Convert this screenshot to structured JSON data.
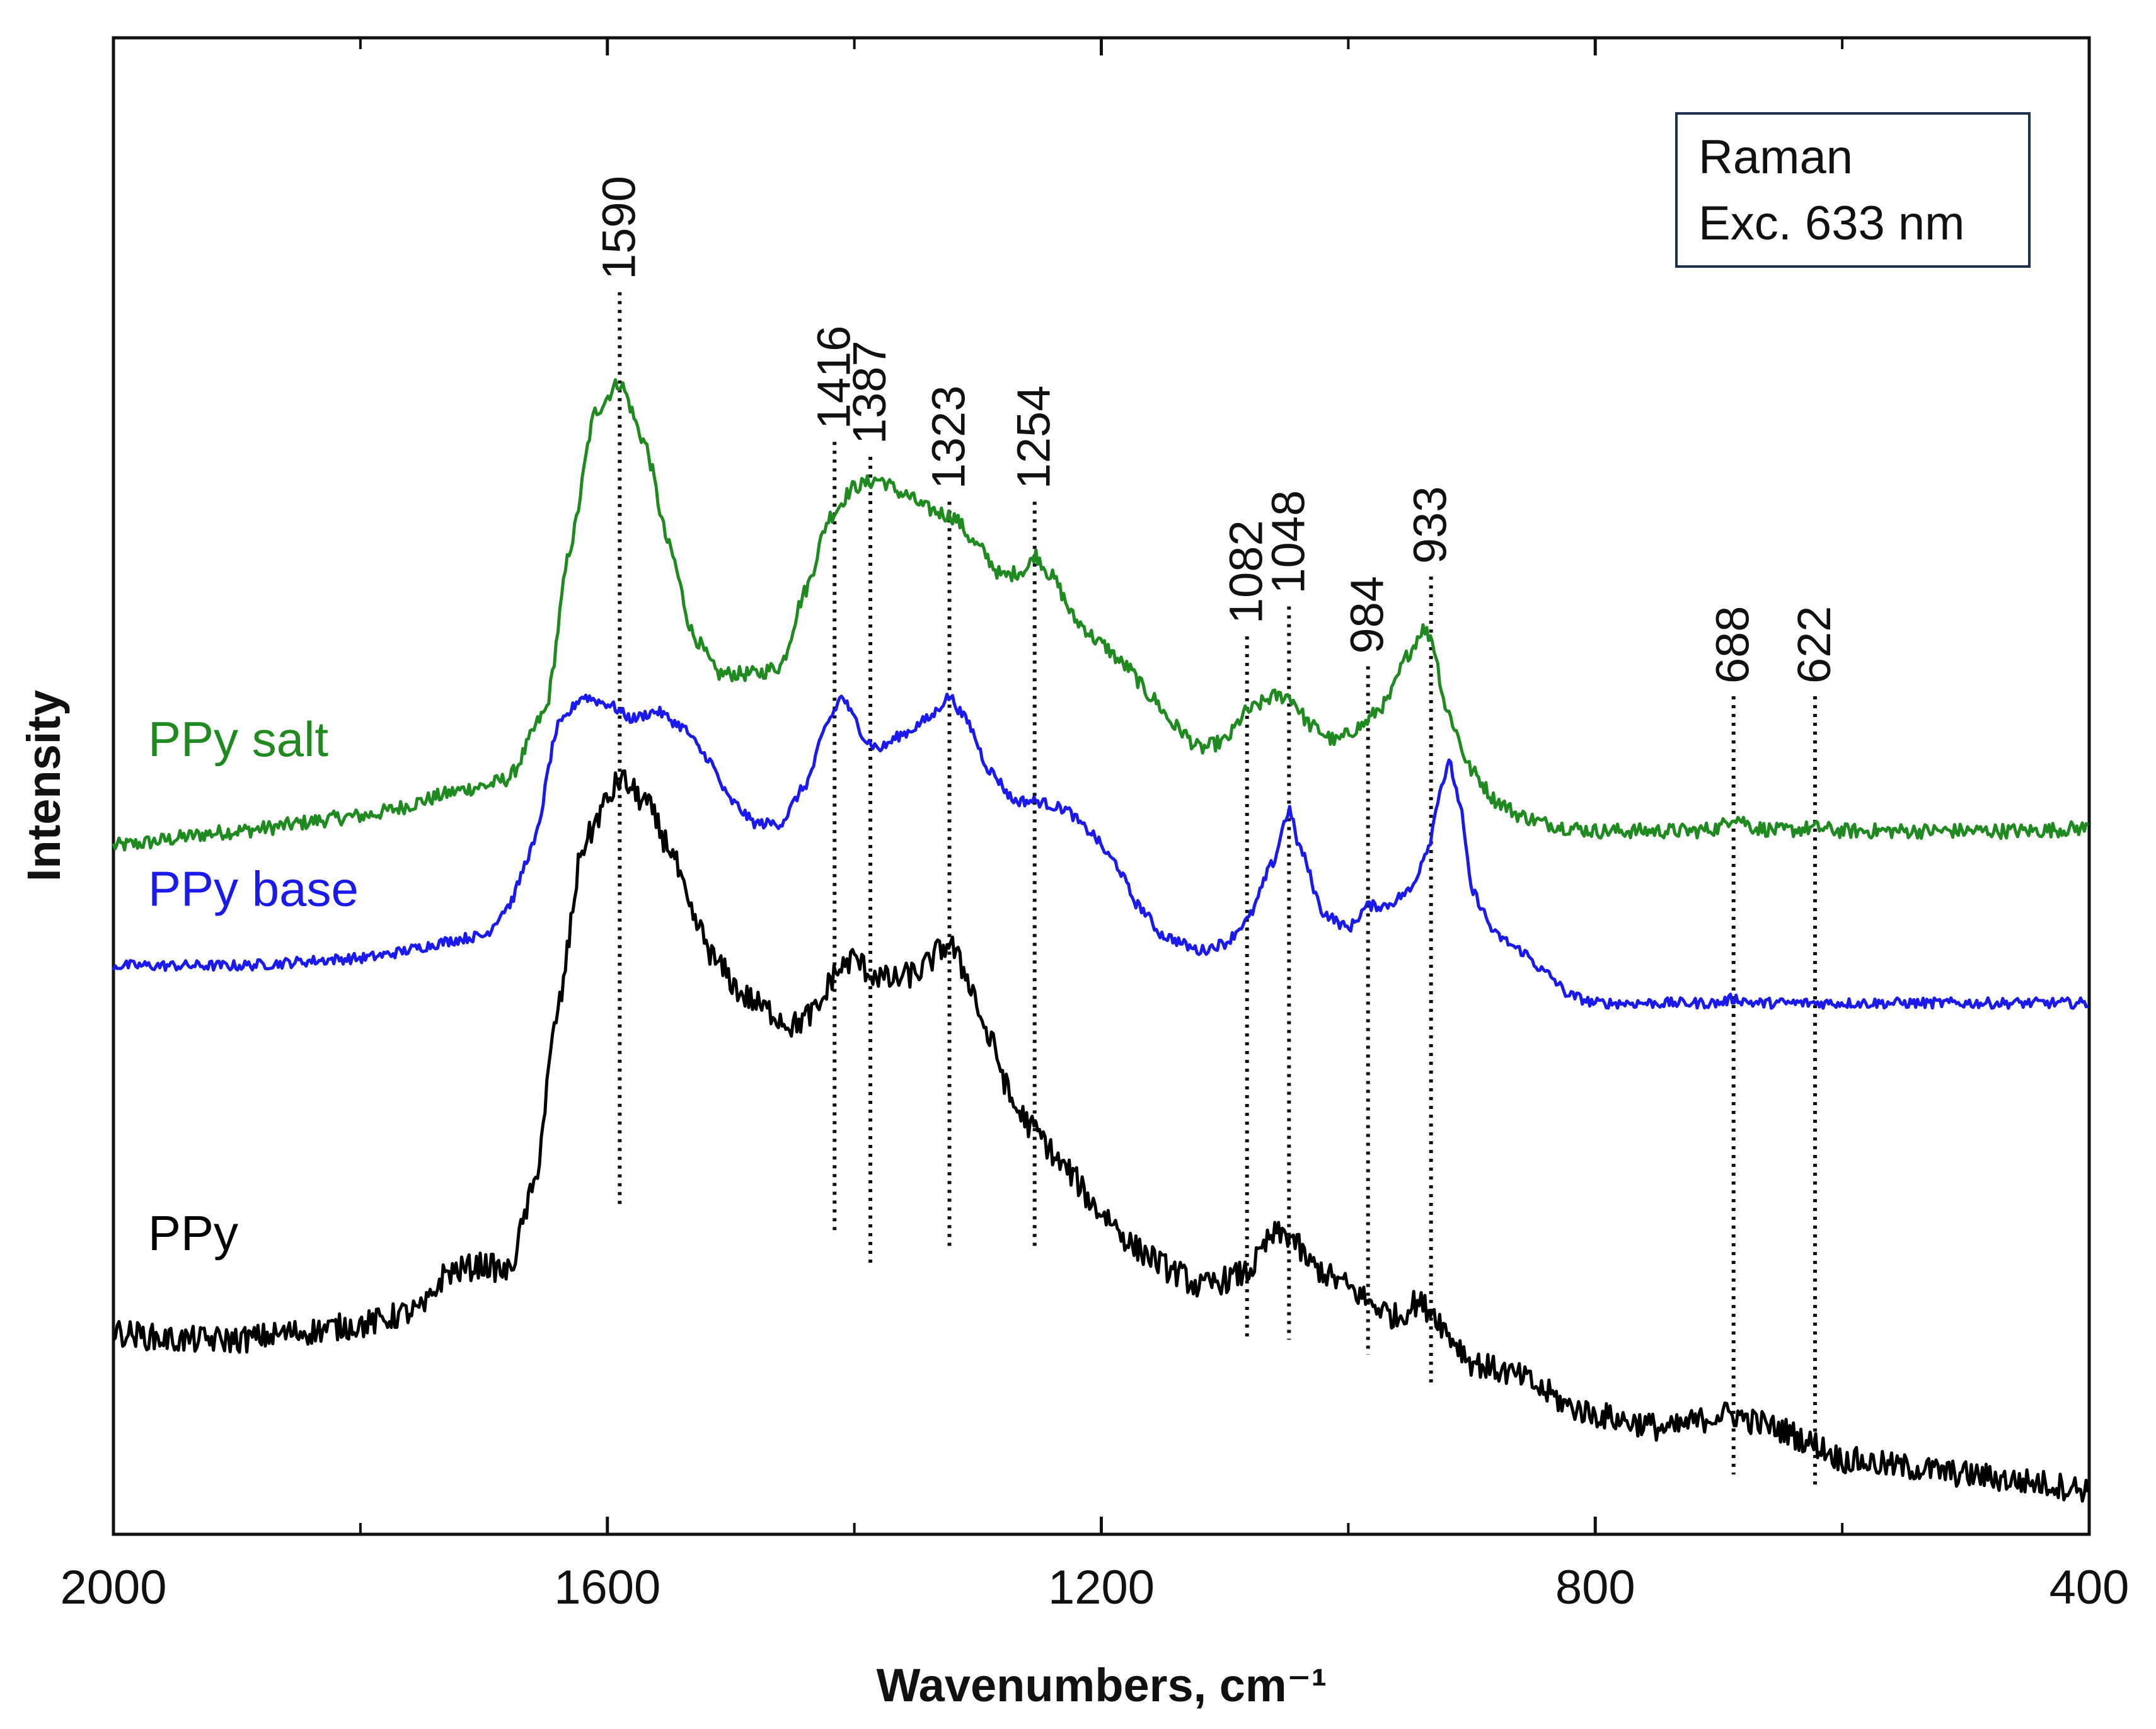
{
  "chart_data": {
    "type": "line",
    "title": "",
    "xlabel": "Wavenumbers, cm⁻¹",
    "ylabel": "Intensity",
    "xlim": [
      2000,
      400
    ],
    "x_reversed": true,
    "xticks": [
      2000,
      1600,
      1200,
      800,
      400
    ],
    "xtick_labels": [
      "2000",
      "1600",
      "1200",
      "800",
      "400"
    ],
    "grid": false,
    "annotation_box": {
      "lines": [
        "Raman",
        "Exc. 633 nm"
      ],
      "position": "top-right"
    },
    "peak_markers": [
      {
        "x": 1590,
        "label": "1590",
        "y_top": 8.3,
        "y_bottom": 2.2
      },
      {
        "x": 1416,
        "label": "1416",
        "y_top": 7.3,
        "y_bottom": 2.0
      },
      {
        "x": 1387,
        "label": "1387",
        "y_top": 7.2,
        "y_bottom": 1.8
      },
      {
        "x": 1323,
        "label": "1323",
        "y_top": 6.9,
        "y_bottom": 1.9
      },
      {
        "x": 1254,
        "label": "1254",
        "y_top": 6.9,
        "y_bottom": 1.9
      },
      {
        "x": 1082,
        "label": "1082",
        "y_top": 6.0,
        "y_bottom": 1.3
      },
      {
        "x": 1048,
        "label": "1048",
        "y_top": 6.2,
        "y_bottom": 1.3
      },
      {
        "x": 984,
        "label": "984",
        "y_top": 5.8,
        "y_bottom": 1.2
      },
      {
        "x": 933,
        "label": "933",
        "y_top": 6.4,
        "y_bottom": 1.0
      },
      {
        "x": 688,
        "label": "688",
        "y_top": 5.6,
        "y_bottom": 0.4
      },
      {
        "x": 622,
        "label": "622",
        "y_top": 5.6,
        "y_bottom": 0.3
      }
    ],
    "series": [
      {
        "name": "PPy salt",
        "color": "#1f8a1f",
        "label_position": "left",
        "x": [
          2000,
          1900,
          1800,
          1700,
          1680,
          1650,
          1630,
          1610,
          1590,
          1570,
          1550,
          1530,
          1510,
          1480,
          1460,
          1440,
          1420,
          1400,
          1380,
          1360,
          1340,
          1320,
          1300,
          1280,
          1260,
          1254,
          1240,
          1220,
          1200,
          1180,
          1160,
          1140,
          1120,
          1100,
          1082,
          1060,
          1048,
          1030,
          1010,
          990,
          970,
          950,
          940,
          933,
          920,
          900,
          880,
          860,
          840,
          820,
          800,
          760,
          720,
          700,
          688,
          670,
          650,
          622,
          600,
          550,
          500,
          450,
          400
        ],
        "values": [
          4.6,
          4.7,
          4.8,
          5.0,
          5.05,
          5.5,
          6.6,
          7.5,
          7.7,
          7.3,
          6.6,
          6.0,
          5.75,
          5.75,
          5.8,
          6.3,
          6.8,
          7.0,
          7.05,
          6.95,
          6.85,
          6.8,
          6.6,
          6.4,
          6.45,
          6.55,
          6.4,
          6.1,
          5.95,
          5.8,
          5.6,
          5.4,
          5.25,
          5.3,
          5.5,
          5.6,
          5.6,
          5.4,
          5.3,
          5.4,
          5.55,
          5.9,
          6.05,
          6.0,
          5.5,
          5.1,
          4.9,
          4.8,
          4.75,
          4.72,
          4.7,
          4.7,
          4.7,
          4.72,
          4.8,
          4.72,
          4.7,
          4.72,
          4.7,
          4.7,
          4.7,
          4.7,
          4.72
        ]
      },
      {
        "name": "PPy base",
        "color": "#1a1aee",
        "label_position": "left",
        "x": [
          2000,
          1900,
          1800,
          1700,
          1680,
          1660,
          1640,
          1620,
          1600,
          1580,
          1560,
          1540,
          1520,
          1500,
          1480,
          1460,
          1440,
          1420,
          1410,
          1400,
          1390,
          1380,
          1360,
          1340,
          1323,
          1310,
          1290,
          1270,
          1254,
          1230,
          1210,
          1190,
          1170,
          1150,
          1120,
          1100,
          1082,
          1060,
          1052,
          1048,
          1040,
          1020,
          1000,
          984,
          970,
          950,
          935,
          925,
          918,
          910,
          900,
          880,
          860,
          840,
          820,
          800,
          760,
          720,
          700,
          688,
          670,
          650,
          622,
          600,
          550,
          500,
          450,
          400
        ],
        "values": [
          3.8,
          3.8,
          3.85,
          4.0,
          4.2,
          4.6,
          5.4,
          5.6,
          5.55,
          5.45,
          5.5,
          5.4,
          5.2,
          4.9,
          4.75,
          4.75,
          5.0,
          5.45,
          5.6,
          5.45,
          5.3,
          5.25,
          5.35,
          5.45,
          5.6,
          5.45,
          5.1,
          4.9,
          4.9,
          4.85,
          4.7,
          4.5,
          4.2,
          4.0,
          3.9,
          3.95,
          4.1,
          4.5,
          4.75,
          4.85,
          4.6,
          4.15,
          4.05,
          4.2,
          4.2,
          4.3,
          4.6,
          5.0,
          5.15,
          4.9,
          4.3,
          4.0,
          3.9,
          3.75,
          3.6,
          3.55,
          3.55,
          3.55,
          3.55,
          3.58,
          3.55,
          3.55,
          3.55,
          3.55,
          3.55,
          3.55,
          3.55,
          3.55
        ]
      },
      {
        "name": "PPy",
        "color": "#000000",
        "label_position": "left",
        "x": [
          2000,
          1950,
          1900,
          1850,
          1800,
          1750,
          1730,
          1700,
          1680,
          1660,
          1640,
          1620,
          1600,
          1590,
          1570,
          1550,
          1530,
          1510,
          1490,
          1470,
          1450,
          1430,
          1416,
          1400,
          1387,
          1370,
          1350,
          1323,
          1310,
          1290,
          1270,
          1254,
          1230,
          1200,
          1170,
          1140,
          1120,
          1100,
          1082,
          1060,
          1048,
          1030,
          1010,
          990,
          984,
          960,
          945,
          933,
          915,
          900,
          880,
          860,
          840,
          820,
          800,
          770,
          740,
          720,
          700,
          688,
          670,
          650,
          622,
          600,
          550,
          500,
          450,
          400
        ],
        "values": [
          1.35,
          1.3,
          1.3,
          1.35,
          1.4,
          1.5,
          1.75,
          1.8,
          1.75,
          2.3,
          3.5,
          4.6,
          4.9,
          5.05,
          4.9,
          4.6,
          4.1,
          3.8,
          3.6,
          3.5,
          3.4,
          3.5,
          3.75,
          3.85,
          3.75,
          3.7,
          3.75,
          3.95,
          3.75,
          3.3,
          2.85,
          2.7,
          2.45,
          2.15,
          1.9,
          1.75,
          1.65,
          1.7,
          1.75,
          2.0,
          2.0,
          1.8,
          1.7,
          1.6,
          1.55,
          1.45,
          1.55,
          1.5,
          1.3,
          1.15,
          1.1,
          1.05,
          0.95,
          0.85,
          0.8,
          0.75,
          0.7,
          0.75,
          0.8,
          0.8,
          0.75,
          0.7,
          0.6,
          0.5,
          0.45,
          0.4,
          0.35,
          0.3
        ]
      }
    ]
  }
}
